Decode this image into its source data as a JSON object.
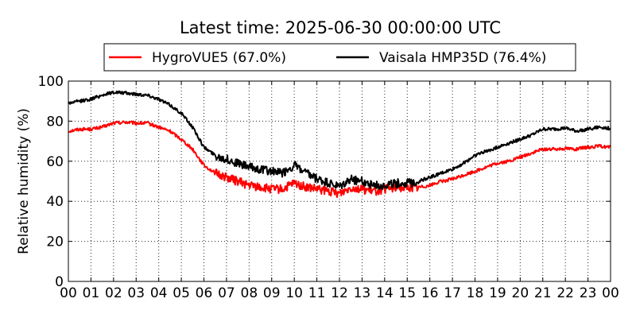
{
  "chart_data": {
    "type": "line",
    "title": "Latest time: 2025-06-30 00:00:00 UTC",
    "ylabel": "Relative humidity (%)",
    "xlabel": "",
    "x_range_hours": [
      0,
      24
    ],
    "ylim": [
      0,
      100
    ],
    "x_tick_labels": [
      "00",
      "01",
      "02",
      "03",
      "04",
      "05",
      "06",
      "07",
      "08",
      "09",
      "10",
      "11",
      "12",
      "13",
      "14",
      "15",
      "16",
      "17",
      "18",
      "19",
      "20",
      "21",
      "22",
      "23",
      "00"
    ],
    "y_ticks": [
      0,
      20,
      40,
      60,
      80,
      100
    ],
    "grid": true,
    "legend": {
      "placement": "top-center"
    },
    "series": [
      {
        "name": "HygroVUE5 (67.0%)",
        "color": "#ff0000",
        "x": [
          0,
          0.5,
          1,
          1.5,
          2,
          2.5,
          3,
          3.5,
          4,
          4.5,
          5,
          5.5,
          6,
          6.5,
          7,
          7.5,
          8,
          8.5,
          9,
          9.5,
          10,
          10.5,
          11,
          11.5,
          12,
          12.5,
          13,
          13.5,
          14,
          14.5,
          15,
          15.5,
          16,
          16.5,
          17,
          17.5,
          18,
          18.5,
          19,
          19.5,
          20,
          20.5,
          21,
          21.5,
          22,
          22.5,
          23,
          23.5,
          24
        ],
        "values": [
          75,
          76,
          76,
          77,
          79,
          79.5,
          79,
          79,
          77,
          75,
          71,
          66,
          58,
          54,
          52,
          50,
          48,
          47,
          46,
          46,
          49,
          47,
          46,
          45,
          44,
          47,
          46,
          45,
          46,
          47,
          47,
          47,
          48,
          50,
          51,
          53,
          55,
          57,
          59,
          60,
          62,
          64,
          66,
          66,
          66.5,
          66,
          67,
          67.5,
          67
        ]
      },
      {
        "name": "Vaisala HMP35D (76.4%)",
        "color": "#000000",
        "x": [
          0,
          0.5,
          1,
          1.5,
          2,
          2.5,
          3,
          3.5,
          4,
          4.5,
          5,
          5.5,
          6,
          6.5,
          7,
          7.5,
          8,
          8.5,
          9,
          9.5,
          10,
          10.5,
          11,
          11.5,
          12,
          12.5,
          13,
          13.5,
          14,
          14.5,
          15,
          15.5,
          16,
          16.5,
          17,
          17.5,
          18,
          18.5,
          19,
          19.5,
          20,
          20.5,
          21,
          21.5,
          22,
          22.5,
          23,
          23.5,
          24
        ],
        "values": [
          89,
          90,
          91,
          93,
          94.5,
          94,
          93.5,
          93,
          91,
          88,
          84,
          77,
          67,
          63,
          61,
          59,
          57,
          56,
          55,
          54,
          58,
          54,
          51,
          49,
          47,
          51,
          50,
          48,
          48,
          49,
          49,
          50,
          52,
          54,
          56,
          59,
          63,
          65,
          67,
          69,
          71,
          73,
          76,
          76,
          76.5,
          75,
          76,
          77,
          76.4
        ]
      }
    ]
  }
}
